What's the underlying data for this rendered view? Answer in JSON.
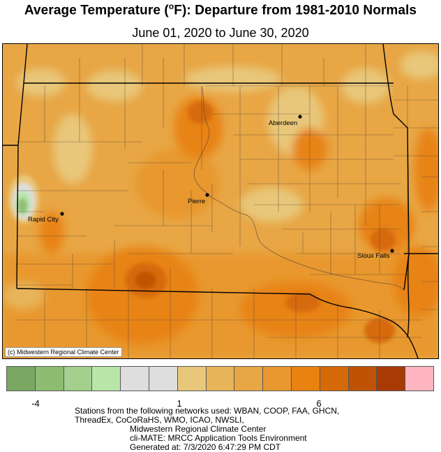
{
  "title_main": "Average Temperature (",
  "title_degree": "o",
  "title_rest": "F): Departure from 1981-2010 Normals",
  "subtitle": "June 01, 2020 to June 30, 2020",
  "credit": "(c) Midwestern Regional Climate Center",
  "cities": [
    {
      "name": "Aberdeen"
    },
    {
      "name": "Pierre"
    },
    {
      "name": "Rapid City"
    },
    {
      "name": "Sioux Falls"
    }
  ],
  "legend": {
    "colors": [
      "#7aa862",
      "#8dbd72",
      "#a3d08c",
      "#b8e6a8",
      "#dedede",
      "#dedede",
      "#e8c77a",
      "#e8b45a",
      "#e8a645",
      "#e8982f",
      "#e88312",
      "#d66a08",
      "#c05205",
      "#a83a03",
      "#ffb6c1"
    ],
    "ticks": [
      "-4",
      "1",
      "6"
    ]
  },
  "footer": {
    "line1": "Stations from the following networks used: WBAN, COOP, FAA, GHCN,",
    "line2": "ThreadEx, CoCoRaHS, WMO, ICAO, NWSLI,",
    "line3": "Midwestern Regional Climate Center",
    "line4": "cli-MATE: MRCC Application Tools Environment",
    "line5": "Generated at: 7/3/2020 6:47:29 PM CDT"
  }
}
